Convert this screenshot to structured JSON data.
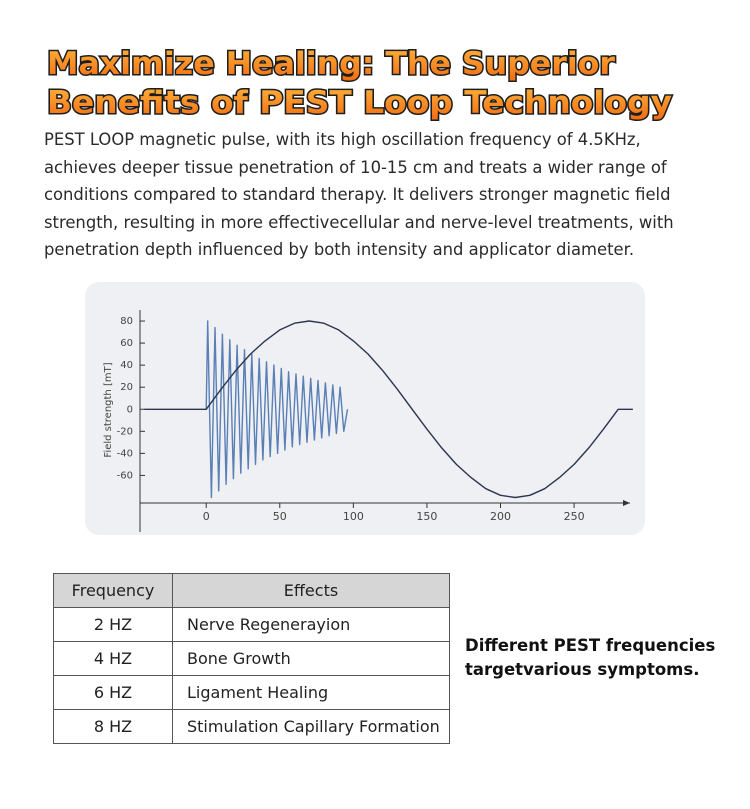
{
  "header": {
    "title_lines": [
      "Maximize Healing: The Superior",
      "Benefits of PEST Loop Technology"
    ],
    "paragraph_lines": [
      "PEST LOOP magnetic pulse, with its high oscillation frequency of 4.5KHz,",
      "achieves deeper tissue penetration of 10-15 cm and treats a wider range of",
      "conditions compared to standard  therapy. It delivers stronger magnetic field",
      "strength, resulting in more effectivecellular and nerve-level treatments, with",
      "penetration depth influenced by both intensity and applicator diameter."
    ]
  },
  "chart_data": {
    "type": "line",
    "y_label": "Field strength [mT]",
    "xlim": [
      -45,
      288
    ],
    "ylim": [
      -85,
      90
    ],
    "xticks": [
      0,
      50,
      100,
      150,
      200,
      250
    ],
    "yticks": [
      80,
      60,
      40,
      20,
      0,
      -20,
      -40,
      -60
    ],
    "series": [
      {
        "color": "#5a7fb5",
        "x": [
          0,
          1,
          3.5,
          6,
          8.5,
          11,
          13.5,
          16,
          18.5,
          21,
          23.5,
          26,
          28.5,
          31,
          33.5,
          36,
          38.5,
          41,
          43.5,
          46,
          48.5,
          51,
          53.5,
          56,
          58.5,
          61,
          63.5,
          66,
          68.5,
          71,
          73.5,
          76,
          78.5,
          81,
          83.5,
          86,
          88.5,
          91,
          93.5,
          96
        ],
        "values": [
          0,
          80,
          -80,
          74,
          -74,
          68,
          -68,
          63,
          -63,
          58,
          -58,
          54,
          -54,
          50,
          -50,
          46,
          -46,
          43,
          -43,
          40,
          -40,
          37,
          -37,
          34,
          -34,
          32,
          -32,
          30,
          -30,
          28,
          -28,
          26,
          -26,
          24,
          -24,
          22,
          -22,
          20,
          -20,
          0
        ]
      },
      {
        "color": "#2b3550",
        "x": [
          -42,
          0,
          10,
          20,
          30,
          40,
          50,
          60,
          70,
          80,
          90,
          100,
          110,
          120,
          130,
          140,
          150,
          160,
          170,
          180,
          190,
          200,
          210,
          220,
          230,
          240,
          250,
          260,
          270,
          280,
          290
        ],
        "values": [
          0,
          0,
          18,
          35,
          50,
          62,
          72,
          78,
          80,
          78,
          72,
          62,
          50,
          35,
          18,
          0,
          -18,
          -35,
          -50,
          -62,
          -72,
          -78,
          -80,
          -78,
          -72,
          -62,
          -50,
          -35,
          -18,
          0,
          0
        ]
      }
    ]
  },
  "table": {
    "header": [
      "Frequency",
      "Effects"
    ],
    "rows": [
      [
        "2 HZ",
        "Nerve Regenerayion"
      ],
      [
        "4 HZ",
        "Bone Growth"
      ],
      [
        "6 HZ",
        "Ligament Healing"
      ],
      [
        "8 HZ",
        "Stimulation Capillary Formation"
      ]
    ]
  },
  "side_note": "Different PEST frequencies targetvarious symptoms."
}
